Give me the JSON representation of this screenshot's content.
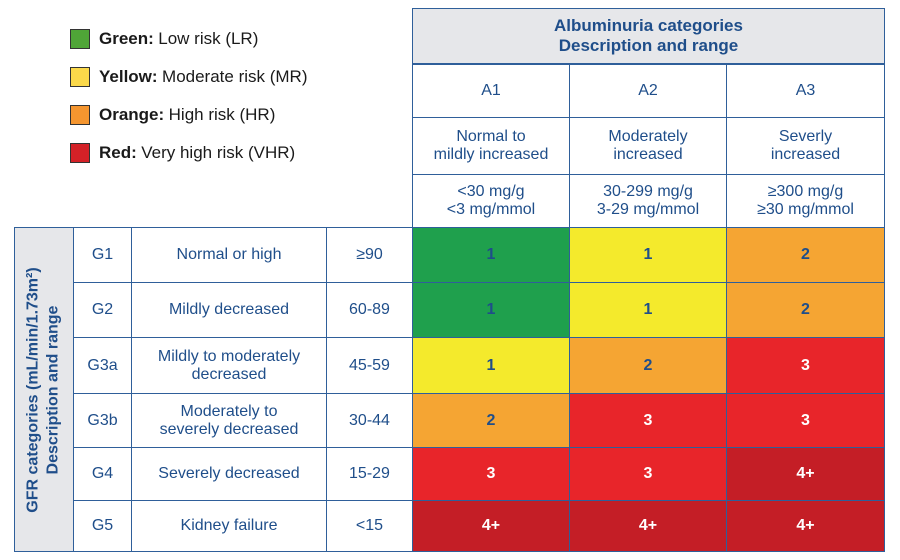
{
  "legend": [
    {
      "color_name": "Green:",
      "description": "Low risk (LR)",
      "swatch": "#4fa537"
    },
    {
      "color_name": "Yellow:",
      "description": "Moderate risk (MR)",
      "swatch": "#fbd94a"
    },
    {
      "color_name": "Orange:",
      "description": "High risk (HR)",
      "swatch": "#f5962f"
    },
    {
      "color_name": "Red:",
      "description": "Very high risk (VHR)",
      "swatch": "#d42127"
    }
  ],
  "albuminuria": {
    "title_line1": "Albuminuria categories",
    "title_line2": "Description and range",
    "columns": [
      {
        "code": "A1",
        "desc_line1": "Normal to",
        "desc_line2": "mildly increased",
        "range_line1": "<30 mg/g",
        "range_line2": "<3 mg/mmol"
      },
      {
        "code": "A2",
        "desc_line1": "Moderately",
        "desc_line2": "increased",
        "range_line1": "30-299 mg/g",
        "range_line2": "3-29 mg/mmol"
      },
      {
        "code": "A3",
        "desc_line1": "Severly",
        "desc_line2": "increased",
        "range_line1": "≥300 mg/g",
        "range_line2": "≥30 mg/mmol"
      }
    ]
  },
  "gfr": {
    "title_line1": "GFR categories (mL/min/1.73m²)",
    "title_line2": "Description and range",
    "rows": [
      {
        "code": "G1",
        "desc_line1": "Normal or high",
        "desc_line2": "",
        "range": "≥90",
        "cells": [
          {
            "value": "1",
            "level": "green"
          },
          {
            "value": "1",
            "level": "yellow"
          },
          {
            "value": "2",
            "level": "orange"
          }
        ]
      },
      {
        "code": "G2",
        "desc_line1": "Mildly decreased",
        "desc_line2": "",
        "range": "60-89",
        "cells": [
          {
            "value": "1",
            "level": "green"
          },
          {
            "value": "1",
            "level": "yellow"
          },
          {
            "value": "2",
            "level": "orange"
          }
        ]
      },
      {
        "code": "G3a",
        "desc_line1": "Mildly to moderately",
        "desc_line2": "decreased",
        "range": "45-59",
        "cells": [
          {
            "value": "1",
            "level": "yellow"
          },
          {
            "value": "2",
            "level": "orange"
          },
          {
            "value": "3",
            "level": "red"
          }
        ]
      },
      {
        "code": "G3b",
        "desc_line1": "Moderately to",
        "desc_line2": "severely decreased",
        "range": "30-44",
        "cells": [
          {
            "value": "2",
            "level": "orange"
          },
          {
            "value": "3",
            "level": "red"
          },
          {
            "value": "3",
            "level": "red"
          }
        ]
      },
      {
        "code": "G4",
        "desc_line1": "Severely decreased",
        "desc_line2": "",
        "range": "15-29",
        "cells": [
          {
            "value": "3",
            "level": "red"
          },
          {
            "value": "3",
            "level": "red"
          },
          {
            "value": "4+",
            "level": "darkred"
          }
        ]
      },
      {
        "code": "G5",
        "desc_line1": "Kidney failure",
        "desc_line2": "",
        "range": "<15",
        "cells": [
          {
            "value": "4+",
            "level": "darkred"
          },
          {
            "value": "4+",
            "level": "darkred"
          },
          {
            "value": "4+",
            "level": "darkred"
          }
        ]
      }
    ]
  },
  "colors": {
    "border": "#2f5f9a",
    "text": "#1f4e8a",
    "header_bg": "#e6e7ea",
    "green": "#1fa04d",
    "yellow": "#f4ea2c",
    "orange": "#f5a533",
    "red": "#e8252a",
    "darkred": "#c41e26"
  }
}
